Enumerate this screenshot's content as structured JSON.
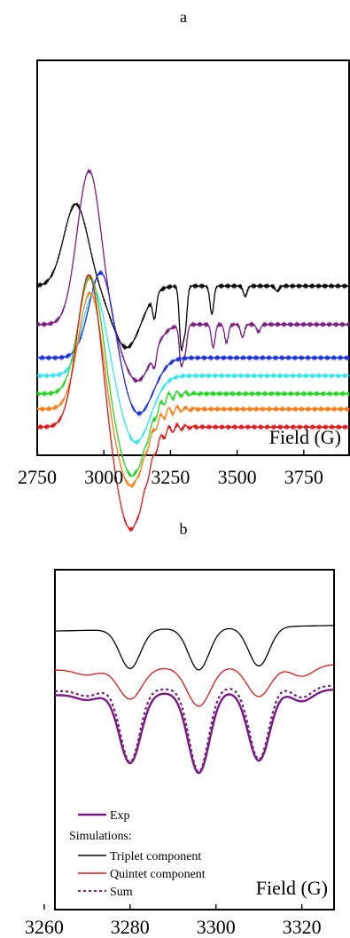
{
  "chart_data": [
    {
      "panel_label": "a",
      "type": "line",
      "xlabel": "Field (G)",
      "xlim": [
        2750,
        3920
      ],
      "xticks": [
        2750,
        3000,
        3250,
        3500,
        3750
      ],
      "colors": {
        "black": "#000000",
        "purple": "#7a1a82",
        "blue": "#1a2ee6",
        "cyan": "#33e6ef",
        "green": "#20d820",
        "orange": "#ff7a10",
        "red": "#e01818"
      },
      "series": [
        {
          "color": "black",
          "offset": 3.1,
          "peak_x": 2895,
          "peak_h": 1.6,
          "trough_x": 3085,
          "trough_h": 1.2,
          "dips": [
            [
              3190,
              0.45
            ],
            [
              3290,
              1.15
            ],
            [
              3305,
              0.8
            ],
            [
              3405,
              0.55
            ],
            [
              3530,
              0.2
            ],
            [
              3650,
              0.1
            ]
          ]
        },
        {
          "color": "purple",
          "offset": 2.35,
          "peak_x": 2945,
          "peak_h": 3.0,
          "trough_x": 3125,
          "trough_h": 1.1,
          "dips": [
            [
              3190,
              0.3
            ],
            [
              3290,
              0.75
            ],
            [
              3305,
              0.5
            ],
            [
              3410,
              0.45
            ],
            [
              3460,
              0.35
            ],
            [
              3520,
              0.25
            ],
            [
              3580,
              0.15
            ]
          ]
        },
        {
          "color": "blue",
          "offset": 1.7,
          "peak_x": 2990,
          "peak_h": 1.7,
          "trough_x": 3130,
          "trough_h": 1.1,
          "dips": []
        },
        {
          "color": "cyan",
          "offset": 1.35,
          "peak_x": 2965,
          "peak_h": 1.65,
          "trough_x": 3120,
          "trough_h": 1.3,
          "dips": []
        },
        {
          "color": "green",
          "offset": 1.0,
          "peak_x": 2950,
          "peak_h": 2.3,
          "trough_x": 3105,
          "trough_h": 1.6,
          "dips": []
        },
        {
          "color": "orange",
          "offset": 0.7,
          "peak_x": 2950,
          "peak_h": 2.3,
          "trough_x": 3100,
          "trough_h": 1.5,
          "dips": []
        },
        {
          "color": "red",
          "offset": 0.35,
          "peak_x": 2945,
          "peak_h": 3.0,
          "trough_x": 3100,
          "trough_h": 2.0,
          "dips": []
        }
      ]
    },
    {
      "panel_label": "b",
      "type": "line",
      "xlabel": "Field (G)",
      "xlim": [
        3262.5,
        3327.5
      ],
      "xticks": [
        3260,
        3280,
        3300,
        3320
      ],
      "legend": {
        "title": "Simulations:",
        "entries": [
          {
            "label": "Exp",
            "color": "#7a1a82",
            "dash": false
          },
          {
            "label": "Triplet component",
            "color": "#000000",
            "dash": false
          },
          {
            "label": "Quintet component",
            "color": "#e01818",
            "dash": false
          },
          {
            "label": "Sum",
            "color": "#7a1a82",
            "dash": true
          }
        ]
      },
      "series": [
        {
          "color": "#000000",
          "base": 4.6,
          "lines": [
            [
              3280,
              0.7
            ],
            [
              3296,
              0.75
            ],
            [
              3310,
              0.7
            ]
          ],
          "width": 3.2
        },
        {
          "color": "#e01818",
          "base": 3.9,
          "lines": [
            [
              3270,
              0.1
            ],
            [
              3280,
              0.55
            ],
            [
              3296,
              0.7
            ],
            [
              3310,
              0.55
            ],
            [
              3320,
              0.2
            ]
          ],
          "width": 3.6
        },
        {
          "color": "#7a1a82",
          "base": 3.45,
          "lines": [
            [
              3270,
              0.1
            ],
            [
              3280,
              1.25
            ],
            [
              3296,
              1.45
            ],
            [
              3310,
              1.25
            ],
            [
              3320,
              0.2
            ]
          ],
          "width": 3.3
        },
        {
          "color": "#7a1a82",
          "base": 3.52,
          "dash": true,
          "lines": [
            [
              3270,
              0.1
            ],
            [
              3280,
              1.3
            ],
            [
              3296,
              1.5
            ],
            [
              3310,
              1.3
            ],
            [
              3320,
              0.2
            ]
          ],
          "width": 3.0
        }
      ]
    }
  ]
}
